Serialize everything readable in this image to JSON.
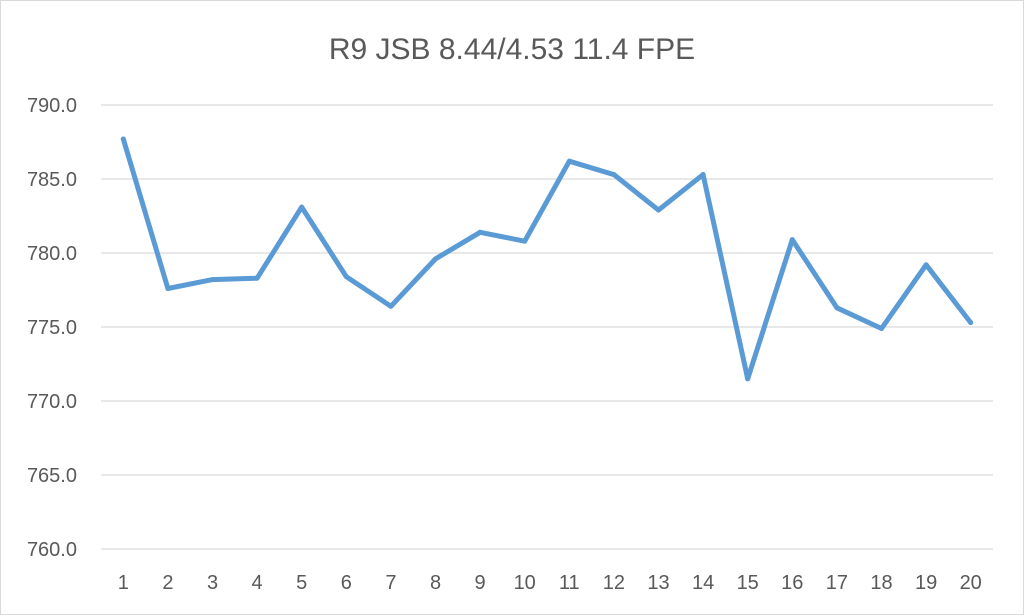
{
  "chart_data": {
    "type": "line",
    "title": "R9 JSB 8.44/4.53 11.4 FPE",
    "xlabel": "",
    "ylabel": "",
    "categories": [
      "1",
      "2",
      "3",
      "4",
      "5",
      "6",
      "7",
      "8",
      "9",
      "10",
      "11",
      "12",
      "13",
      "14",
      "15",
      "16",
      "17",
      "18",
      "19",
      "20"
    ],
    "series": [
      {
        "values": [
          787.7,
          777.6,
          778.2,
          778.3,
          783.1,
          778.4,
          776.4,
          779.6,
          781.4,
          780.8,
          786.2,
          785.3,
          782.9,
          785.3,
          771.5,
          780.9,
          776.3,
          774.9,
          779.2,
          775.3
        ],
        "color": "#5b9bd5"
      }
    ],
    "ylim": [
      760,
      790
    ],
    "yticks": [
      "760.0",
      "765.0",
      "770.0",
      "775.0",
      "780.0",
      "785.0",
      "790.0"
    ],
    "grid": true,
    "legend": "none"
  }
}
